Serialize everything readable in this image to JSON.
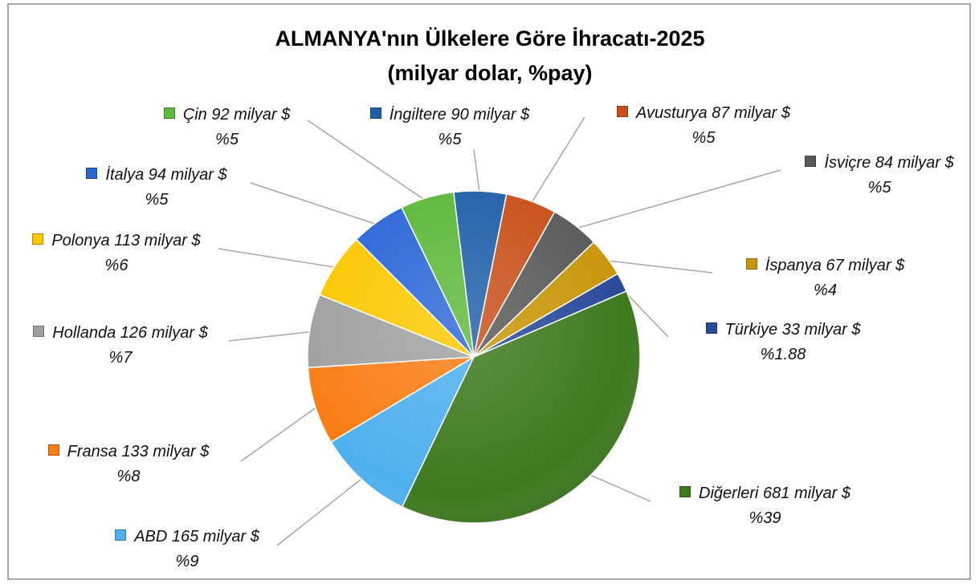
{
  "chart_data": {
    "type": "pie",
    "title": "ALMANYA'nın Ülkelere Göre İhracatı-2025",
    "subtitle": "(milyar dolar, %pay)",
    "categories": [
      "İngiltere",
      "Avusturya",
      "İsviçre",
      "İspanya",
      "Türkiye",
      "Diğerleri",
      "ABD",
      "Fransa",
      "Hollanda",
      "Polonya",
      "İtalya",
      "Çin"
    ],
    "values": [
      90,
      87,
      84,
      67,
      33,
      681,
      165,
      133,
      126,
      113,
      94,
      92
    ],
    "value_labels": [
      "90 milyar $",
      "87 milyar $",
      "84 milyar $",
      "67 milyar $",
      "33 milyar $",
      "681 milyar $",
      "165 milyar $",
      "133 milyar $",
      "126 milyar $",
      "113 milyar $",
      "94 milyar $",
      "92 milyar $"
    ],
    "share_labels": [
      "%5",
      "%5",
      "%5",
      "%4",
      "%1.88",
      "%39",
      "%9",
      "%8",
      "%7",
      "%6",
      "%5",
      "%5"
    ],
    "colors": [
      "#1f5fa8",
      "#c8501a",
      "#5a5a5a",
      "#c8960a",
      "#2a4a9a",
      "#3d7a1e",
      "#4fb0ee",
      "#f97d14",
      "#a0a0a0",
      "#fcc800",
      "#2a66d6",
      "#5cb83a"
    ]
  }
}
